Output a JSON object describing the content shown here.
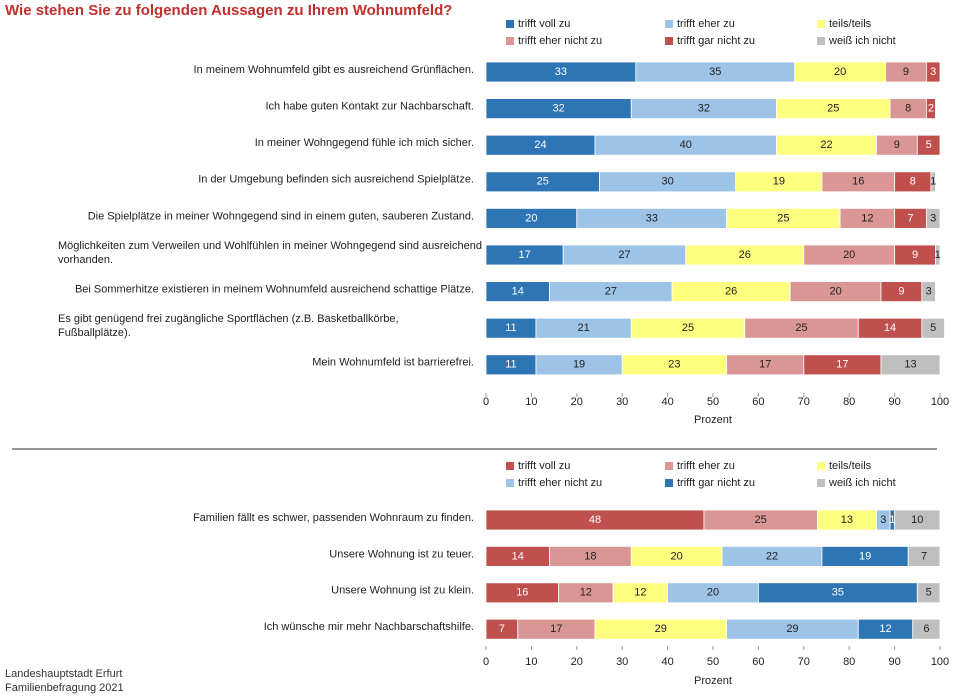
{
  "page_title": "Wie stehen Sie zu folgenden Aussagen zu Ihrem Wohnumfeld?",
  "source": {
    "line1": "Landeshauptstadt Erfurt",
    "line2": "Familienbefragung 2021"
  },
  "chart_data": [
    {
      "type": "bar",
      "orientation": "horizontal",
      "stacked": true,
      "title": "Wie stehen Sie zu folgenden Aussagen zu Ihrem Wohnumfeld?",
      "xlabel": "Prozent",
      "xlim": [
        0,
        100
      ],
      "xticks": [
        "0",
        "10",
        "20",
        "30",
        "40",
        "50",
        "60",
        "70",
        "80",
        "90",
        "100"
      ],
      "legend_position": "top",
      "categories": [
        "In meinem Wohnumfeld gibt es ausreichend Grünflächen.",
        "Ich habe guten Kontakt zur Nachbarschaft.",
        "In meiner Wohngegend fühle ich mich sicher.",
        "In der Umgebung befinden sich ausreichend Spielplätze.",
        "Die Spielplätze in meiner Wohngegend sind in einem guten, sauberen Zustand.",
        "Möglichkeiten zum Verweilen und Wohlfühlen in meiner Wohngegend sind ausreichend vorhanden.",
        "Bei Sommerhitze existieren in meinem Wohnumfeld ausreichend schattige Plätze.",
        "Es gibt genügend frei zugängliche Sportflächen (z.B. Basketballkörbe, Fußballplätze).",
        "Mein Wohnumfeld ist barrierefrei."
      ],
      "series": [
        {
          "name": "trifft voll zu",
          "color": "#2e75b6",
          "values": [
            33,
            32,
            24,
            25,
            20,
            17,
            14,
            11,
            11
          ]
        },
        {
          "name": "trifft eher zu",
          "color": "#9dc3e6",
          "values": [
            35,
            32,
            40,
            30,
            33,
            27,
            27,
            21,
            19
          ]
        },
        {
          "name": "teils/teils",
          "color": "#ffff7f",
          "values": [
            20,
            25,
            22,
            19,
            25,
            26,
            26,
            25,
            23
          ]
        },
        {
          "name": "trifft eher nicht zu",
          "color": "#d99694",
          "values": [
            9,
            8,
            9,
            16,
            12,
            20,
            20,
            25,
            17
          ]
        },
        {
          "name": "trifft gar nicht zu",
          "color": "#c0504d",
          "values": [
            3,
            2,
            5,
            8,
            7,
            9,
            9,
            14,
            17
          ]
        },
        {
          "name": "weiß ich nicht",
          "color": "#bfbfbf",
          "values": [
            0,
            0,
            0,
            1,
            3,
            1,
            3,
            5,
            13
          ]
        }
      ]
    },
    {
      "type": "bar",
      "orientation": "horizontal",
      "stacked": true,
      "xlabel": "Prozent",
      "xlim": [
        0,
        100
      ],
      "xticks": [
        "0",
        "10",
        "20",
        "30",
        "40",
        "50",
        "60",
        "70",
        "80",
        "90",
        "100"
      ],
      "legend_position": "top",
      "categories": [
        "Familien fällt es schwer, passenden Wohnraum zu finden.",
        "Unsere Wohnung ist zu teuer.",
        "Unsere Wohnung ist zu klein.",
        "Ich wünsche mir mehr Nachbarschaftshilfe."
      ],
      "series": [
        {
          "name": "trifft voll zu",
          "color": "#c0504d",
          "values": [
            48,
            14,
            16,
            7
          ]
        },
        {
          "name": "trifft eher zu",
          "color": "#d99694",
          "values": [
            25,
            18,
            12,
            17
          ]
        },
        {
          "name": "teils/teils",
          "color": "#ffff7f",
          "values": [
            13,
            20,
            12,
            29
          ]
        },
        {
          "name": "trifft eher nicht zu",
          "color": "#9dc3e6",
          "values": [
            3,
            22,
            20,
            29
          ]
        },
        {
          "name": "trifft gar nicht zu",
          "color": "#2e75b6",
          "values": [
            1,
            19,
            35,
            12
          ]
        },
        {
          "name": "weiß ich nicht",
          "color": "#bfbfbf",
          "values": [
            10,
            7,
            5,
            6
          ]
        }
      ]
    }
  ]
}
